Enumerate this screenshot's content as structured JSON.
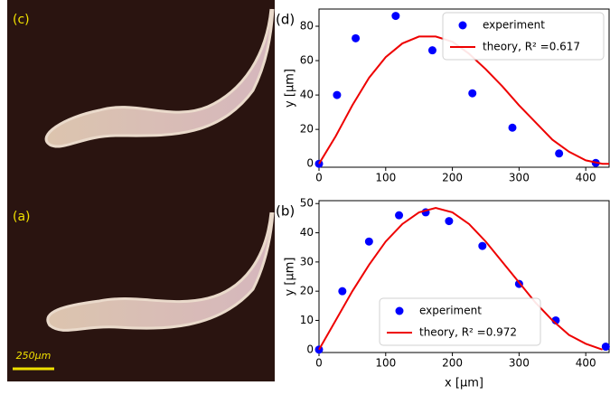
{
  "images": [
    {
      "label": "(c)"
    },
    {
      "label": "(a)",
      "scale_bar": "250μm"
    }
  ],
  "chart_data": [
    {
      "type": "scatter",
      "label": "(d)",
      "ylabel": "y [μm]",
      "xlim": [
        0,
        435
      ],
      "ylim": [
        -2,
        90
      ],
      "xticks": [
        0,
        100,
        200,
        300,
        400
      ],
      "yticks": [
        0,
        20,
        40,
        60,
        80
      ],
      "legend": "upper right",
      "series": [
        {
          "name": "experiment",
          "mode": "points",
          "color": "#0000ff",
          "x": [
            0,
            27,
            55,
            115,
            170,
            230,
            290,
            360,
            415
          ],
          "values": [
            0,
            40,
            73,
            86,
            66,
            41,
            21,
            6,
            0.5
          ]
        },
        {
          "name": "theory, R² =0.617",
          "mode": "line",
          "color": "#ee0000",
          "x": [
            0,
            25,
            50,
            75,
            100,
            125,
            150,
            175,
            200,
            225,
            250,
            275,
            300,
            325,
            350,
            375,
            400,
            425,
            435
          ],
          "values": [
            0,
            16,
            34,
            50,
            62,
            70,
            74,
            74,
            71,
            64,
            55,
            45,
            34,
            24,
            14,
            7,
            2,
            0,
            0
          ]
        }
      ]
    },
    {
      "type": "scatter",
      "label": "(b)",
      "ylabel": "y [μm]",
      "xlabel": "x [μm]",
      "xlim": [
        0,
        435
      ],
      "ylim": [
        -1,
        51
      ],
      "xticks": [
        0,
        100,
        200,
        300,
        400
      ],
      "yticks": [
        0,
        10,
        20,
        30,
        40,
        50
      ],
      "legend": "lower right",
      "series": [
        {
          "name": "experiment",
          "mode": "points",
          "color": "#0000ff",
          "x": [
            0,
            35,
            75,
            120,
            160,
            195,
            245,
            300,
            355,
            430
          ],
          "values": [
            0,
            20,
            37,
            46,
            47,
            44,
            35.5,
            22.5,
            10,
            1
          ]
        },
        {
          "name": "theory, R² =0.972",
          "mode": "line",
          "color": "#ee0000",
          "x": [
            0,
            25,
            50,
            75,
            100,
            125,
            150,
            175,
            200,
            225,
            250,
            275,
            300,
            325,
            350,
            375,
            400,
            425
          ],
          "values": [
            0,
            10,
            20,
            29,
            37,
            43,
            47,
            48.5,
            47,
            43,
            37,
            30,
            23,
            16,
            10,
            5,
            2,
            0
          ]
        }
      ]
    }
  ]
}
